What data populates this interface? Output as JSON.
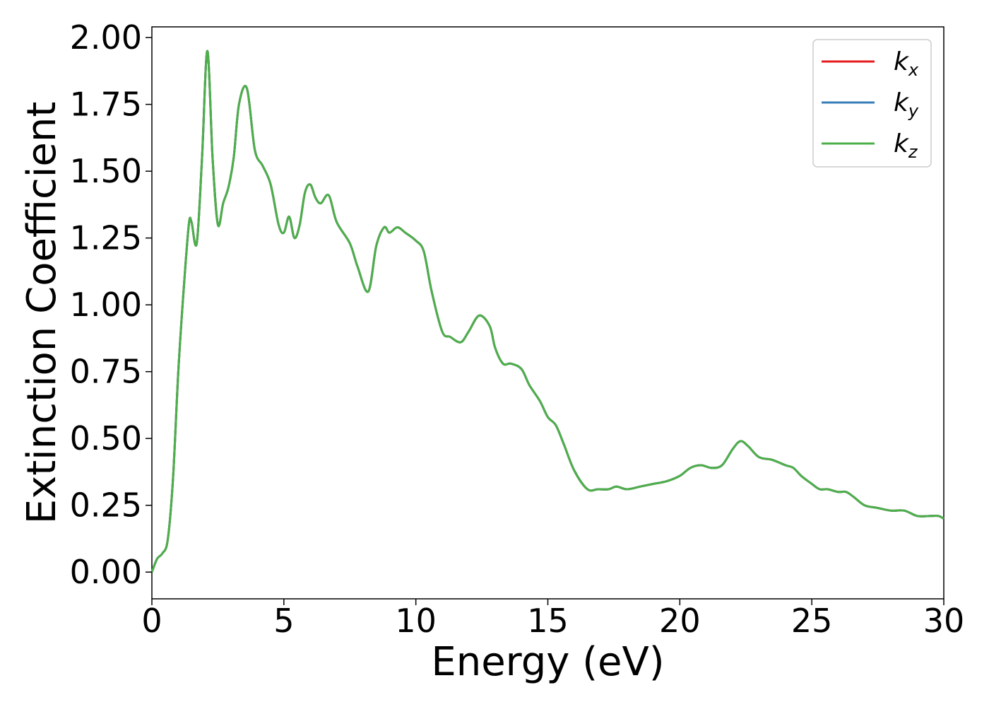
{
  "chart_data": {
    "type": "line",
    "title": "",
    "xlabel": "Energy (eV)",
    "ylabel": "Extinction Coefficient",
    "xlim": [
      0,
      30
    ],
    "ylim": [
      -0.1,
      2.04
    ],
    "xticks": [
      0,
      5,
      10,
      15,
      20,
      25,
      30
    ],
    "xtick_labels": [
      "0",
      "5",
      "10",
      "15",
      "20",
      "25",
      "30"
    ],
    "yticks": [
      0.0,
      0.25,
      0.5,
      0.75,
      1.0,
      1.25,
      1.5,
      1.75,
      2.0
    ],
    "ytick_labels": [
      "0.00",
      "0.25",
      "0.50",
      "0.75",
      "1.00",
      "1.25",
      "1.50",
      "1.75",
      "2.00"
    ],
    "grid": false,
    "legend_position": "top-right",
    "series": [
      {
        "name": "k",
        "subscript": "x",
        "color": "#e41a1c"
      },
      {
        "name": "k",
        "subscript": "y",
        "color": "#377eb8"
      },
      {
        "name": "k",
        "subscript": "z",
        "color": "#4daf4a"
      }
    ],
    "x": [
      0,
      0.2,
      0.4,
      0.6,
      0.8,
      1.0,
      1.2,
      1.4,
      1.5,
      1.7,
      1.9,
      2.1,
      2.3,
      2.5,
      2.7,
      2.9,
      3.1,
      3.3,
      3.6,
      3.9,
      4.2,
      4.5,
      4.8,
      5.0,
      5.2,
      5.4,
      5.6,
      5.8,
      6.0,
      6.2,
      6.4,
      6.7,
      7.0,
      7.5,
      7.8,
      8.2,
      8.5,
      8.8,
      9.0,
      9.3,
      9.6,
      10.0,
      10.3,
      10.6,
      11.0,
      11.3,
      11.7,
      12.0,
      12.4,
      12.8,
      13.0,
      13.3,
      13.6,
      14.0,
      14.3,
      14.7,
      15.0,
      15.3,
      15.6,
      16.0,
      16.5,
      16.9,
      17.3,
      17.6,
      18.0,
      18.5,
      19.0,
      19.5,
      20.0,
      20.4,
      20.8,
      21.2,
      21.6,
      22.0,
      22.3,
      22.6,
      23.0,
      23.5,
      24.0,
      24.3,
      24.6,
      25.0,
      25.3,
      25.6,
      26.0,
      26.3,
      26.6,
      27.0,
      27.5,
      28.0,
      28.5,
      29.0,
      29.5,
      29.8,
      30.0
    ],
    "values": [
      0.0,
      0.05,
      0.07,
      0.12,
      0.35,
      0.75,
      1.05,
      1.3,
      1.31,
      1.23,
      1.55,
      1.95,
      1.55,
      1.3,
      1.38,
      1.44,
      1.55,
      1.75,
      1.81,
      1.58,
      1.52,
      1.45,
      1.3,
      1.27,
      1.33,
      1.25,
      1.3,
      1.42,
      1.45,
      1.4,
      1.38,
      1.41,
      1.31,
      1.23,
      1.14,
      1.05,
      1.22,
      1.29,
      1.27,
      1.29,
      1.27,
      1.24,
      1.2,
      1.05,
      0.9,
      0.88,
      0.86,
      0.9,
      0.96,
      0.92,
      0.84,
      0.78,
      0.78,
      0.76,
      0.7,
      0.64,
      0.58,
      0.55,
      0.48,
      0.38,
      0.31,
      0.31,
      0.31,
      0.32,
      0.31,
      0.32,
      0.33,
      0.34,
      0.36,
      0.39,
      0.4,
      0.39,
      0.4,
      0.46,
      0.49,
      0.47,
      0.43,
      0.42,
      0.4,
      0.39,
      0.36,
      0.33,
      0.31,
      0.31,
      0.3,
      0.3,
      0.28,
      0.25,
      0.24,
      0.23,
      0.23,
      0.21,
      0.21,
      0.21,
      0.2
    ]
  }
}
